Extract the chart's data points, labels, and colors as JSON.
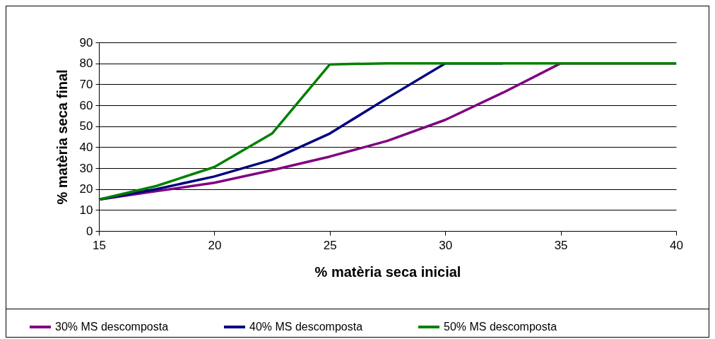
{
  "chart_data": {
    "type": "line",
    "xlabel": "% matèria seca inicial",
    "ylabel": "% matèria seca final",
    "x": [
      15,
      17.5,
      20,
      22.5,
      25,
      27.5,
      30,
      32.5,
      35,
      37.5,
      40
    ],
    "xlim": [
      15,
      40
    ],
    "xticks": [
      15,
      20,
      25,
      30,
      35,
      40
    ],
    "ylim": [
      0,
      90
    ],
    "yticks": [
      0,
      10,
      20,
      30,
      40,
      50,
      60,
      70,
      80,
      90
    ],
    "grid": "y",
    "legend": "bottom",
    "marker": "none",
    "line_style": "solid",
    "series": [
      {
        "name": "30% MS descomposta",
        "color": "#800080",
        "values": [
          15,
          19,
          23,
          29,
          35.5,
          43,
          53,
          66,
          80,
          80,
          80
        ]
      },
      {
        "name": "40% MS descomposta",
        "color": "#000080",
        "values": [
          15,
          20,
          26,
          34,
          46.5,
          63.5,
          80,
          80,
          null,
          null,
          null
        ]
      },
      {
        "name": "50% MS descomposta",
        "color": "#008000",
        "values": [
          15,
          21.5,
          30.5,
          46.5,
          79.5,
          80,
          80,
          80,
          80,
          80,
          80
        ]
      }
    ]
  }
}
